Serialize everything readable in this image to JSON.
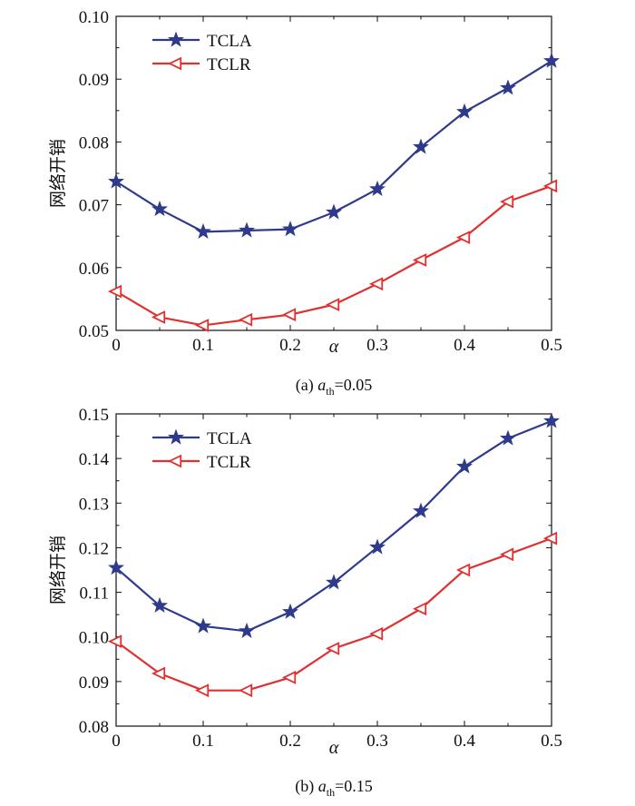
{
  "chart_data": [
    {
      "type": "line",
      "caption_prefix": "(a) ",
      "caption_param": "a",
      "caption_sub": "th",
      "caption_value": "=0.05",
      "xlabel": "α",
      "ylabel": "网络开销",
      "xlim": [
        0,
        0.5
      ],
      "ylim": [
        0.05,
        0.1
      ],
      "xticks": [
        "0",
        "0.1",
        "0.2",
        "0.3",
        "0.4",
        "0.5"
      ],
      "yticks": [
        "0.05",
        "0.06",
        "0.07",
        "0.08",
        "0.09",
        "0.10"
      ],
      "legend_position": "top-left",
      "x": [
        0,
        0.05,
        0.1,
        0.15,
        0.2,
        0.25,
        0.3,
        0.35,
        0.4,
        0.45,
        0.5
      ],
      "series": [
        {
          "name": "TCLA",
          "color": "#2e3a8c",
          "marker": "star",
          "values": [
            0.0737,
            0.0693,
            0.0657,
            0.0659,
            0.0661,
            0.0688,
            0.0725,
            0.0792,
            0.0848,
            0.0886,
            0.0929
          ]
        },
        {
          "name": "TCLR",
          "color": "#e03030",
          "marker": "triangle-left",
          "values": [
            0.0562,
            0.0521,
            0.0508,
            0.0517,
            0.0525,
            0.0541,
            0.0574,
            0.0612,
            0.0648,
            0.0705,
            0.073
          ]
        }
      ]
    },
    {
      "type": "line",
      "caption_prefix": "(b) ",
      "caption_param": "a",
      "caption_sub": "th",
      "caption_value": "=0.15",
      "xlabel": "α",
      "ylabel": "网络开销",
      "xlim": [
        0,
        0.5
      ],
      "ylim": [
        0.08,
        0.15
      ],
      "xticks": [
        "0",
        "0.1",
        "0.2",
        "0.3",
        "0.4",
        "0.5"
      ],
      "yticks": [
        "0.08",
        "0.09",
        "0.10",
        "0.11",
        "0.12",
        "0.13",
        "0.14",
        "0.15"
      ],
      "legend_position": "top-left",
      "x": [
        0,
        0.05,
        0.1,
        0.15,
        0.2,
        0.25,
        0.3,
        0.35,
        0.4,
        0.45,
        0.5
      ],
      "series": [
        {
          "name": "TCLA",
          "color": "#2e3a8c",
          "marker": "star",
          "values": [
            0.1155,
            0.107,
            0.1024,
            0.1013,
            0.1056,
            0.1122,
            0.1201,
            0.1282,
            0.1382,
            0.1445,
            0.1484
          ]
        },
        {
          "name": "TCLR",
          "color": "#e03030",
          "marker": "triangle-left",
          "values": [
            0.099,
            0.0918,
            0.088,
            0.088,
            0.0909,
            0.0974,
            0.1007,
            0.1063,
            0.115,
            0.1185,
            0.1221
          ]
        }
      ]
    }
  ]
}
